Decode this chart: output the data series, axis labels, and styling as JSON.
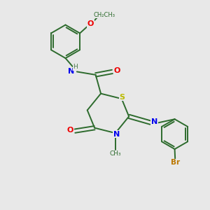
{
  "background_color": "#e8e8e8",
  "bond_color": "#2d6b2d",
  "atom_colors": {
    "N": "#0000ee",
    "O": "#ee0000",
    "S": "#bbbb00",
    "Br": "#bb7700",
    "H": "#4a7a4a",
    "C": "#2d6b2d"
  },
  "figsize": [
    3.0,
    3.0
  ],
  "dpi": 100
}
